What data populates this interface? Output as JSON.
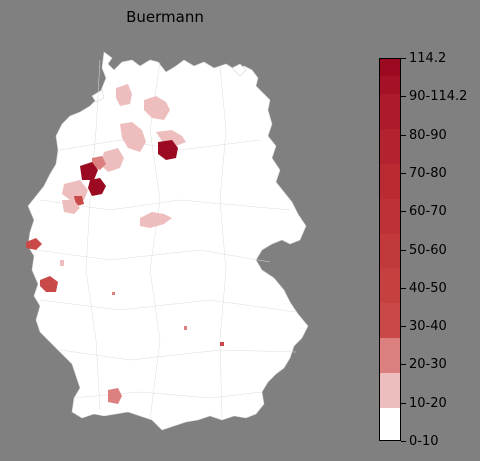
{
  "map": {
    "title": "Buermann",
    "base_color": "#ffffff",
    "border_color": "#cfcfcf",
    "background": "#808080"
  },
  "legend": {
    "colors": [
      "#ffffff",
      "#eebebe",
      "#dc7f7f",
      "#c94848",
      "#c6403f",
      "#c2393b",
      "#be3136",
      "#b92a33",
      "#b3222f",
      "#ad1a2b",
      "#a51126",
      "#9b0a21"
    ],
    "labels": [
      "0-10",
      "10-20",
      "20-30",
      "30-40",
      "40-50",
      "50-60",
      "60-70",
      "70-80",
      "80-90",
      "90-114.2",
      "114.2"
    ]
  }
}
